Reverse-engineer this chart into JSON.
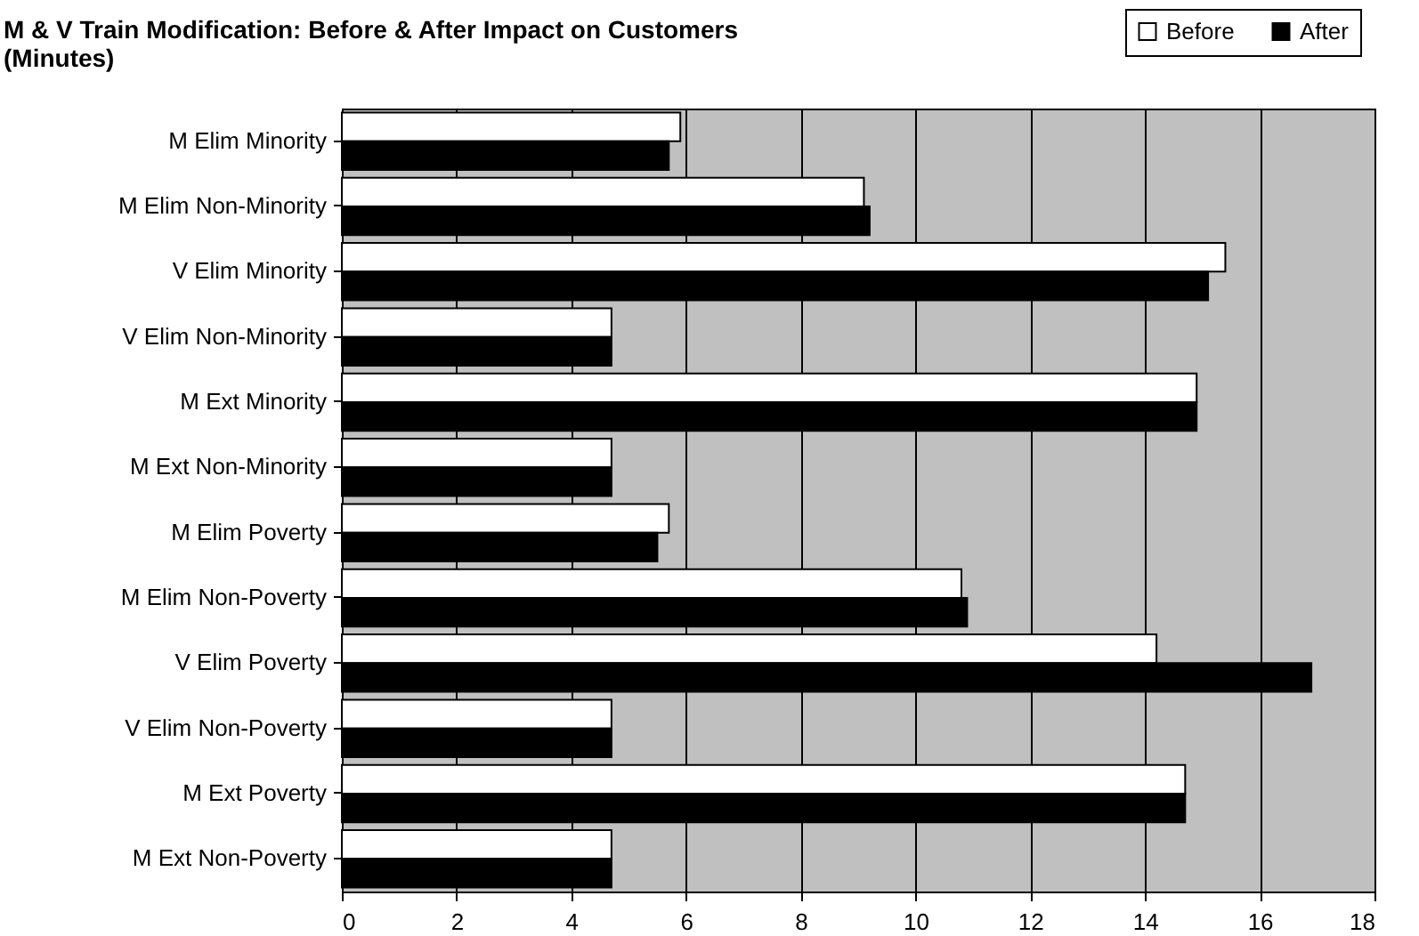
{
  "chart_data": {
    "type": "bar",
    "orientation": "horizontal",
    "title": "M & V Train Modification: Before & After Impact on Customers (Minutes)",
    "categories": [
      "M Elim Minority",
      "M Elim Non-Minority",
      "V Elim Minority",
      "V Elim Non-Minority",
      "M Ext Minority",
      "M Ext Non-Minority",
      "M Elim Poverty",
      "M Elim Non-Poverty",
      "V Elim Poverty",
      "V Elim Non-Poverty",
      "M Ext Poverty",
      "M Ext Non-Poverty"
    ],
    "series": [
      {
        "name": "Before",
        "color": "#ffffff",
        "values": [
          5.9,
          9.1,
          15.4,
          4.7,
          14.9,
          4.7,
          5.7,
          10.8,
          14.2,
          4.7,
          14.7,
          4.7
        ]
      },
      {
        "name": "After",
        "color": "#000000",
        "values": [
          5.7,
          9.2,
          15.1,
          4.7,
          14.9,
          4.7,
          5.5,
          10.9,
          16.9,
          4.7,
          14.7,
          4.7
        ]
      }
    ],
    "xlim": [
      0,
      18
    ],
    "xticks": [
      0,
      2,
      4,
      6,
      8,
      10,
      12,
      14,
      16,
      18
    ],
    "grid": "x",
    "legend": "top right"
  }
}
